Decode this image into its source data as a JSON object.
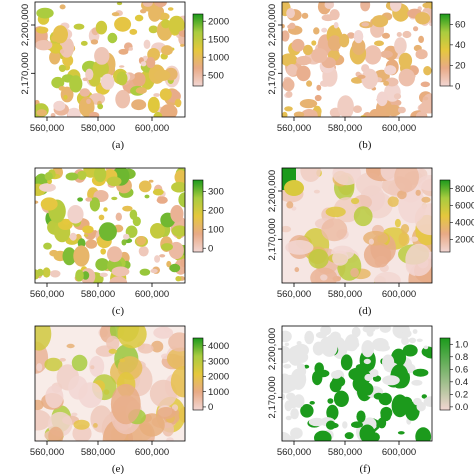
{
  "colors": {
    "ramp_low": "#f2d6d2",
    "ramp_lowmid": "#e8aa86",
    "ramp_mid": "#e5c83d",
    "ramp_midhigh": "#a9cc3f",
    "ramp_high": "#1c9a1c",
    "background_class": "#e7e7e7",
    "frame": "#000000"
  },
  "chart_data": [
    {
      "panel": "(a)",
      "type": "heatmap",
      "x_ticks": [
        "560,000",
        "580,000",
        "600,000"
      ],
      "y_ticks": [
        "2,200,000",
        "2,170,000"
      ],
      "legend_ticks": [
        "2000",
        "1500",
        "1000",
        "500"
      ],
      "legend_range": [
        200,
        2200
      ],
      "pattern": "scattered patches, dense in north and east"
    },
    {
      "panel": "(b)",
      "type": "heatmap",
      "x_ticks": [
        "560,000",
        "580,000",
        "600,000"
      ],
      "y_ticks": [
        "2,200,000",
        "2,170,000"
      ],
      "legend_ticks": [
        "60",
        "40",
        "20",
        "0"
      ],
      "legend_range": [
        0,
        70
      ],
      "pattern": "scattered patches, mostly low values"
    },
    {
      "panel": "(c)",
      "type": "heatmap",
      "x_ticks": [
        "560,000",
        "580,000",
        "600,000"
      ],
      "y_ticks": [],
      "legend_ticks": [
        "300",
        "200",
        "100",
        "0"
      ],
      "legend_range": [
        -20,
        360
      ],
      "pattern": "fragmented patches with many high values"
    },
    {
      "panel": "(d)",
      "type": "heatmap",
      "x_ticks": [
        "560,000",
        "580,000",
        "600,000"
      ],
      "y_ticks": [
        "2,200,000",
        "2,170,000"
      ],
      "legend_ticks": [
        "8000",
        "6000",
        "4000",
        "2000"
      ],
      "legend_range": [
        500,
        9000
      ],
      "pattern": "continuous surface, mostly low with hot spots"
    },
    {
      "panel": "(e)",
      "type": "heatmap",
      "x_ticks": [
        "560,000",
        "580,000",
        "600,000"
      ],
      "y_ticks": [],
      "legend_ticks": [
        "4000",
        "3000",
        "2000",
        "1000",
        "0"
      ],
      "legend_range": [
        -200,
        4500
      ],
      "pattern": "continuous surface with moderate patches"
    },
    {
      "panel": "(f)",
      "type": "heatmap",
      "x_ticks": [
        "560,000",
        "580,000",
        "600,000"
      ],
      "y_ticks": [
        "2,200,000",
        "2,170,000"
      ],
      "legend_ticks": [
        "1.0",
        "0.8",
        "0.6",
        "0.4",
        "0.2",
        "0.0"
      ],
      "legend_range": [
        -0.05,
        1.1
      ],
      "pattern": "binary map, green core patches on grey"
    }
  ]
}
